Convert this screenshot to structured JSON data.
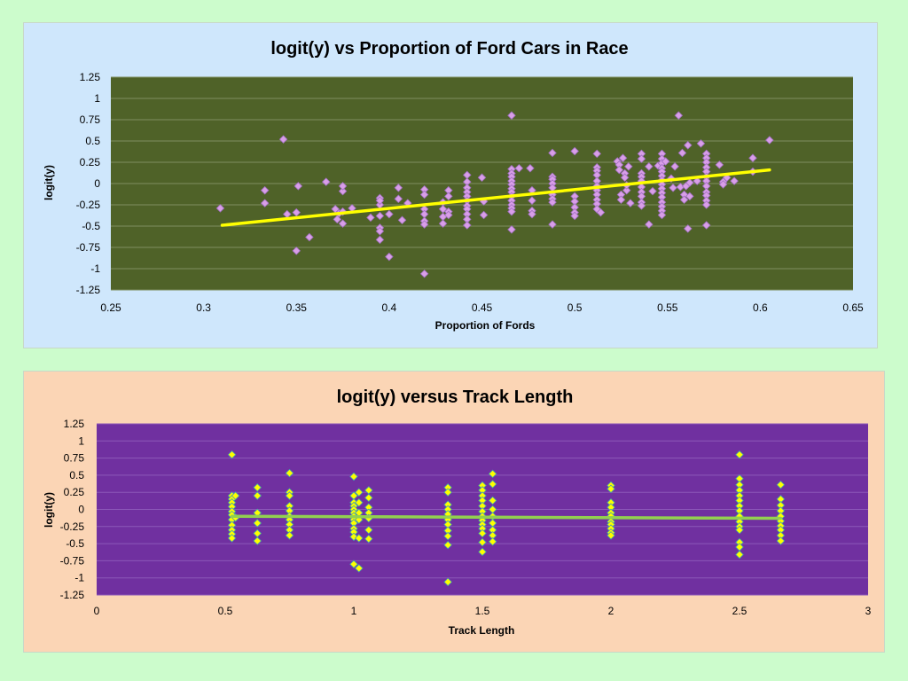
{
  "chart_data": [
    {
      "type": "scatter",
      "title": "logit(y) vs Proportion of Ford Cars in Race",
      "xlabel": "Proportion of Fords",
      "ylabel": "logit(y)",
      "xlim": [
        0.25,
        0.65
      ],
      "ylim": [
        -1.25,
        1.25
      ],
      "xticks": [
        0.25,
        0.3,
        0.35,
        0.4,
        0.45,
        0.5,
        0.55,
        0.6,
        0.65
      ],
      "yticks": [
        1.25,
        1,
        0.75,
        0.5,
        0.25,
        0,
        -0.25,
        -0.5,
        -0.75,
        -1,
        -1.25
      ],
      "grid": true,
      "legend": "none",
      "colors": {
        "panel": "#cfe7fc",
        "plot": "#4f6228",
        "point": "#d99ee8",
        "point_edge": "#a070c0",
        "trendline": "#ffff00",
        "grid": "#7f8f60"
      },
      "points": [
        [
          0.309,
          -0.29
        ],
        [
          0.333,
          -0.08
        ],
        [
          0.333,
          -0.23
        ],
        [
          0.343,
          0.52
        ],
        [
          0.345,
          -0.36
        ],
        [
          0.35,
          -0.34
        ],
        [
          0.35,
          -0.79
        ],
        [
          0.351,
          -0.03
        ],
        [
          0.357,
          -0.63
        ],
        [
          0.366,
          0.02
        ],
        [
          0.371,
          -0.3
        ],
        [
          0.372,
          -0.42
        ],
        [
          0.373,
          -0.35
        ],
        [
          0.375,
          -0.47
        ],
        [
          0.375,
          -0.33
        ],
        [
          0.375,
          -0.09
        ],
        [
          0.375,
          -0.03
        ],
        [
          0.38,
          -0.29
        ],
        [
          0.39,
          -0.4
        ],
        [
          0.395,
          -0.25
        ],
        [
          0.395,
          -0.17
        ],
        [
          0.395,
          -0.38
        ],
        [
          0.395,
          -0.52
        ],
        [
          0.395,
          -0.66
        ],
        [
          0.395,
          -0.56
        ],
        [
          0.395,
          -0.2
        ],
        [
          0.4,
          -0.36
        ],
        [
          0.4,
          -0.86
        ],
        [
          0.405,
          -0.18
        ],
        [
          0.405,
          -0.05
        ],
        [
          0.407,
          -0.43
        ],
        [
          0.41,
          -0.23
        ],
        [
          0.419,
          -0.07
        ],
        [
          0.419,
          -0.13
        ],
        [
          0.419,
          -0.3
        ],
        [
          0.419,
          -0.36
        ],
        [
          0.419,
          -0.44
        ],
        [
          0.419,
          -0.48
        ],
        [
          0.419,
          -1.06
        ],
        [
          0.429,
          -0.22
        ],
        [
          0.429,
          -0.3
        ],
        [
          0.429,
          -0.39
        ],
        [
          0.429,
          -0.47
        ],
        [
          0.432,
          -0.08
        ],
        [
          0.432,
          -0.15
        ],
        [
          0.432,
          -0.33
        ],
        [
          0.432,
          -0.37
        ],
        [
          0.442,
          0.1
        ],
        [
          0.442,
          0.02
        ],
        [
          0.442,
          -0.05
        ],
        [
          0.442,
          -0.1
        ],
        [
          0.442,
          -0.15
        ],
        [
          0.442,
          -0.2
        ],
        [
          0.442,
          -0.26
        ],
        [
          0.442,
          -0.3
        ],
        [
          0.442,
          -0.36
        ],
        [
          0.442,
          -0.42
        ],
        [
          0.442,
          -0.49
        ],
        [
          0.45,
          0.07
        ],
        [
          0.451,
          -0.21
        ],
        [
          0.451,
          -0.37
        ],
        [
          0.466,
          0.8
        ],
        [
          0.466,
          0.17
        ],
        [
          0.466,
          0.12
        ],
        [
          0.466,
          0.08
        ],
        [
          0.466,
          0.03
        ],
        [
          0.466,
          -0.01
        ],
        [
          0.466,
          -0.06
        ],
        [
          0.466,
          -0.1
        ],
        [
          0.466,
          -0.15
        ],
        [
          0.466,
          -0.2
        ],
        [
          0.466,
          -0.25
        ],
        [
          0.466,
          -0.29
        ],
        [
          0.466,
          -0.33
        ],
        [
          0.466,
          -0.54
        ],
        [
          0.47,
          0.18
        ],
        [
          0.476,
          0.18
        ],
        [
          0.477,
          -0.08
        ],
        [
          0.477,
          -0.2
        ],
        [
          0.477,
          -0.32
        ],
        [
          0.477,
          -0.36
        ],
        [
          0.488,
          0.36
        ],
        [
          0.488,
          0.08
        ],
        [
          0.488,
          0.05
        ],
        [
          0.488,
          0.0
        ],
        [
          0.488,
          -0.05
        ],
        [
          0.488,
          -0.13
        ],
        [
          0.488,
          -0.18
        ],
        [
          0.488,
          -0.22
        ],
        [
          0.488,
          -0.48
        ],
        [
          0.5,
          0.38
        ],
        [
          0.5,
          -0.15
        ],
        [
          0.5,
          -0.21
        ],
        [
          0.5,
          -0.28
        ],
        [
          0.5,
          -0.34
        ],
        [
          0.5,
          -0.38
        ],
        [
          0.512,
          0.35
        ],
        [
          0.512,
          0.19
        ],
        [
          0.512,
          0.15
        ],
        [
          0.512,
          0.1
        ],
        [
          0.512,
          0.03
        ],
        [
          0.512,
          -0.03
        ],
        [
          0.512,
          -0.08
        ],
        [
          0.512,
          -0.13
        ],
        [
          0.512,
          -0.19
        ],
        [
          0.512,
          -0.24
        ],
        [
          0.512,
          -0.3
        ],
        [
          0.514,
          -0.34
        ],
        [
          0.523,
          0.26
        ],
        [
          0.524,
          0.22
        ],
        [
          0.524,
          0.16
        ],
        [
          0.525,
          -0.13
        ],
        [
          0.525,
          -0.19
        ],
        [
          0.526,
          0.3
        ],
        [
          0.527,
          0.12
        ],
        [
          0.527,
          0.07
        ],
        [
          0.528,
          -0.08
        ],
        [
          0.528,
          -0.02
        ],
        [
          0.529,
          0.2
        ],
        [
          0.53,
          -0.23
        ],
        [
          0.536,
          0.35
        ],
        [
          0.536,
          0.12
        ],
        [
          0.536,
          0.08
        ],
        [
          0.536,
          0.03
        ],
        [
          0.536,
          -0.04
        ],
        [
          0.536,
          -0.1
        ],
        [
          0.536,
          -0.15
        ],
        [
          0.536,
          -0.22
        ],
        [
          0.536,
          -0.26
        ],
        [
          0.536,
          0.29
        ],
        [
          0.54,
          0.2
        ],
        [
          0.54,
          -0.48
        ],
        [
          0.542,
          -0.09
        ],
        [
          0.545,
          0.21
        ],
        [
          0.547,
          0.35
        ],
        [
          0.547,
          0.29
        ],
        [
          0.547,
          0.24
        ],
        [
          0.547,
          0.18
        ],
        [
          0.547,
          0.14
        ],
        [
          0.547,
          0.09
        ],
        [
          0.547,
          0.04
        ],
        [
          0.547,
          -0.01
        ],
        [
          0.547,
          -0.06
        ],
        [
          0.547,
          -0.11
        ],
        [
          0.547,
          -0.16
        ],
        [
          0.547,
          -0.22
        ],
        [
          0.547,
          -0.27
        ],
        [
          0.547,
          -0.32
        ],
        [
          0.547,
          -0.37
        ],
        [
          0.549,
          0.26
        ],
        [
          0.552,
          0.06
        ],
        [
          0.553,
          -0.05
        ],
        [
          0.554,
          0.2
        ],
        [
          0.556,
          0.8
        ],
        [
          0.557,
          -0.04
        ],
        [
          0.558,
          0.36
        ],
        [
          0.559,
          -0.13
        ],
        [
          0.559,
          -0.19
        ],
        [
          0.56,
          -0.03
        ],
        [
          0.561,
          0.45
        ],
        [
          0.561,
          -0.53
        ],
        [
          0.562,
          -0.15
        ],
        [
          0.562,
          0.01
        ],
        [
          0.566,
          0.03
        ],
        [
          0.568,
          0.47
        ],
        [
          0.571,
          0.35
        ],
        [
          0.571,
          0.3
        ],
        [
          0.571,
          0.25
        ],
        [
          0.571,
          0.19
        ],
        [
          0.571,
          0.14
        ],
        [
          0.571,
          0.08
        ],
        [
          0.571,
          0.03
        ],
        [
          0.571,
          -0.03
        ],
        [
          0.571,
          -0.1
        ],
        [
          0.571,
          -0.14
        ],
        [
          0.571,
          -0.2
        ],
        [
          0.571,
          -0.25
        ],
        [
          0.571,
          -0.49
        ],
        [
          0.578,
          0.22
        ],
        [
          0.58,
          0.02
        ],
        [
          0.58,
          -0.01
        ],
        [
          0.582,
          0.07
        ],
        [
          0.586,
          0.03
        ],
        [
          0.596,
          0.3
        ],
        [
          0.596,
          0.14
        ],
        [
          0.605,
          0.51
        ]
      ],
      "trendline": {
        "x": [
          0.31,
          0.605
        ],
        "y": [
          -0.49,
          0.16
        ]
      }
    },
    {
      "type": "scatter",
      "title": "logit(y) versus Track Length",
      "xlabel": "Track Length",
      "ylabel": "logit(y)",
      "xlim": [
        0,
        3
      ],
      "ylim": [
        -1.25,
        1.25
      ],
      "xticks": [
        0,
        0.5,
        1,
        1.5,
        2,
        2.5,
        3
      ],
      "yticks": [
        1.25,
        1,
        0.75,
        0.5,
        0.25,
        0,
        -0.25,
        -0.5,
        -0.75,
        -1,
        -1.25
      ],
      "grid": true,
      "legend": "none",
      "colors": {
        "panel": "#fbd5b5",
        "plot": "#7030a0",
        "point": "#ffff00",
        "point_edge": "#40a0b0",
        "trendline": "#92d050",
        "grid": "#8c58b8"
      },
      "points": [
        [
          0.526,
          0.8
        ],
        [
          0.526,
          0.2
        ],
        [
          0.526,
          0.15
        ],
        [
          0.526,
          0.1
        ],
        [
          0.526,
          0.04
        ],
        [
          0.526,
          -0.03
        ],
        [
          0.526,
          -0.08
        ],
        [
          0.526,
          -0.15
        ],
        [
          0.526,
          -0.23
        ],
        [
          0.526,
          -0.3
        ],
        [
          0.526,
          -0.36
        ],
        [
          0.526,
          -0.42
        ],
        [
          0.54,
          0.2
        ],
        [
          0.54,
          -0.12
        ],
        [
          0.625,
          0.32
        ],
        [
          0.625,
          0.2
        ],
        [
          0.625,
          -0.05
        ],
        [
          0.625,
          -0.2
        ],
        [
          0.625,
          -0.35
        ],
        [
          0.625,
          -0.46
        ],
        [
          0.75,
          0.53
        ],
        [
          0.75,
          0.25
        ],
        [
          0.75,
          0.2
        ],
        [
          0.75,
          0.05
        ],
        [
          0.75,
          -0.02
        ],
        [
          0.75,
          -0.1
        ],
        [
          0.75,
          -0.15
        ],
        [
          0.75,
          -0.22
        ],
        [
          0.75,
          -0.3
        ],
        [
          0.75,
          -0.38
        ],
        [
          1.0,
          0.48
        ],
        [
          1.0,
          0.2
        ],
        [
          1.0,
          0.1
        ],
        [
          1.0,
          0.05
        ],
        [
          1.0,
          0.0
        ],
        [
          1.0,
          -0.05
        ],
        [
          1.0,
          -0.1
        ],
        [
          1.0,
          -0.15
        ],
        [
          1.0,
          -0.2
        ],
        [
          1.0,
          -0.28
        ],
        [
          1.0,
          -0.33
        ],
        [
          1.0,
          -0.4
        ],
        [
          1.0,
          -0.8
        ],
        [
          1.02,
          0.25
        ],
        [
          1.02,
          0.1
        ],
        [
          1.02,
          -0.05
        ],
        [
          1.02,
          -0.15
        ],
        [
          1.02,
          -0.42
        ],
        [
          1.02,
          -0.86
        ],
        [
          1.058,
          0.28
        ],
        [
          1.058,
          0.17
        ],
        [
          1.058,
          0.03
        ],
        [
          1.058,
          -0.05
        ],
        [
          1.058,
          -0.13
        ],
        [
          1.058,
          -0.3
        ],
        [
          1.058,
          -0.43
        ],
        [
          1.366,
          0.32
        ],
        [
          1.366,
          0.25
        ],
        [
          1.366,
          0.07
        ],
        [
          1.366,
          0.0
        ],
        [
          1.366,
          -0.07
        ],
        [
          1.366,
          -0.15
        ],
        [
          1.366,
          -0.22
        ],
        [
          1.366,
          -0.31
        ],
        [
          1.366,
          -0.39
        ],
        [
          1.366,
          -0.52
        ],
        [
          1.366,
          -1.06
        ],
        [
          1.5,
          0.35
        ],
        [
          1.5,
          0.28
        ],
        [
          1.5,
          0.2
        ],
        [
          1.5,
          0.13
        ],
        [
          1.5,
          0.05
        ],
        [
          1.5,
          -0.03
        ],
        [
          1.5,
          -0.1
        ],
        [
          1.5,
          -0.16
        ],
        [
          1.5,
          -0.22
        ],
        [
          1.5,
          -0.28
        ],
        [
          1.5,
          -0.35
        ],
        [
          1.5,
          -0.48
        ],
        [
          1.5,
          -0.62
        ],
        [
          1.54,
          0.52
        ],
        [
          1.54,
          0.37
        ],
        [
          1.54,
          0.13
        ],
        [
          1.54,
          0.0
        ],
        [
          1.54,
          -0.1
        ],
        [
          1.54,
          -0.2
        ],
        [
          1.54,
          -0.3
        ],
        [
          1.54,
          -0.38
        ],
        [
          1.54,
          -0.47
        ],
        [
          2.0,
          0.35
        ],
        [
          2.0,
          0.3
        ],
        [
          2.0,
          0.1
        ],
        [
          2.0,
          0.03
        ],
        [
          2.0,
          -0.05
        ],
        [
          2.0,
          -0.1
        ],
        [
          2.0,
          -0.18
        ],
        [
          2.0,
          -0.22
        ],
        [
          2.0,
          -0.28
        ],
        [
          2.0,
          -0.34
        ],
        [
          2.0,
          -0.38
        ],
        [
          2.5,
          0.8
        ],
        [
          2.5,
          0.45
        ],
        [
          2.5,
          0.36
        ],
        [
          2.5,
          0.28
        ],
        [
          2.5,
          0.2
        ],
        [
          2.5,
          0.13
        ],
        [
          2.5,
          0.05
        ],
        [
          2.5,
          -0.02
        ],
        [
          2.5,
          -0.1
        ],
        [
          2.5,
          -0.18
        ],
        [
          2.5,
          -0.25
        ],
        [
          2.5,
          -0.3
        ],
        [
          2.5,
          -0.48
        ],
        [
          2.5,
          -0.55
        ],
        [
          2.5,
          -0.66
        ],
        [
          2.66,
          0.36
        ],
        [
          2.66,
          0.15
        ],
        [
          2.66,
          0.06
        ],
        [
          2.66,
          -0.02
        ],
        [
          2.66,
          -0.1
        ],
        [
          2.66,
          -0.17
        ],
        [
          2.66,
          -0.24
        ],
        [
          2.66,
          -0.3
        ],
        [
          2.66,
          -0.38
        ],
        [
          2.66,
          -0.46
        ]
      ],
      "trendline": {
        "x": [
          0.526,
          2.66
        ],
        "y": [
          -0.1,
          -0.13
        ]
      }
    }
  ]
}
